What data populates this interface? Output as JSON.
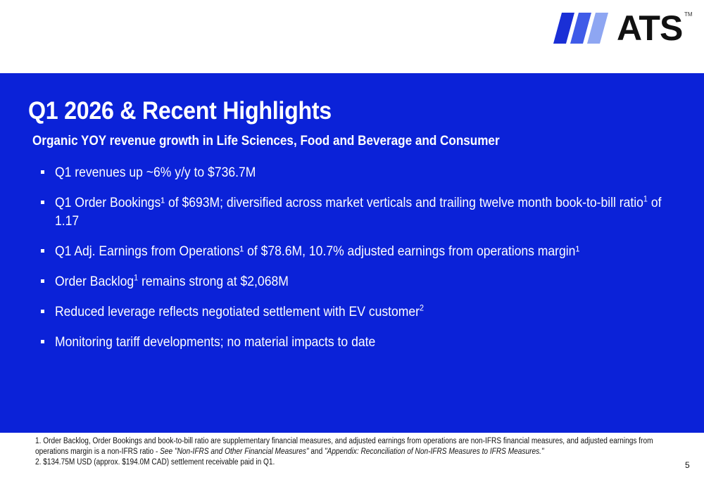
{
  "logo": {
    "text": "ATS",
    "tm": "TM",
    "bar_colors": [
      "#1a2fd6",
      "#3f5be8",
      "#8ea6f2"
    ]
  },
  "title": "Q1 2026 & Recent Highlights",
  "subtitle": "Organic YOY revenue growth in Life Sciences, Food and Beverage and Consumer",
  "bullets": [
    {
      "text": "Q1 revenues up ~6% y/y to $736.7M"
    },
    {
      "text_a": "Q1 Order Bookings¹ of $693M; diversified across market verticals and trailing twelve month book-to-bill ratio",
      "sup": "1",
      "text_b": " of 1.17"
    },
    {
      "text": "Q1 Adj. Earnings from Operations¹ of $78.6M, 10.7% adjusted earnings from operations margin¹"
    },
    {
      "text_a": "Order Backlog",
      "sup": "1",
      "text_b": " remains strong at $2,068M"
    },
    {
      "text_a": "Reduced leverage reflects negotiated settlement with EV customer",
      "sup": "2"
    },
    {
      "text": "Monitoring tariff developments; no material impacts to date"
    }
  ],
  "footnotes": {
    "fn1_a": "1. Order Backlog, Order Bookings and book-to-bill ratio are supplementary financial measures, and adjusted earnings from operations are non-IFRS financial measures, and adjusted earnings from operations margin is a non-IFRS ratio  - ",
    "fn1_b": "See \"Non-IFRS and Other Financial Measures\"",
    "fn1_c": " and ",
    "fn1_d": "\"Appendix: Reconciliation of Non-IFRS Measures to IFRS Measures.\"",
    "fn2": "2.  $134.75M USD (approx. $194.0M CAD) settlement receivable paid in Q1."
  },
  "page_number": "5",
  "colors": {
    "band": "#0b22d8",
    "text_on_band": "#ffffff"
  }
}
